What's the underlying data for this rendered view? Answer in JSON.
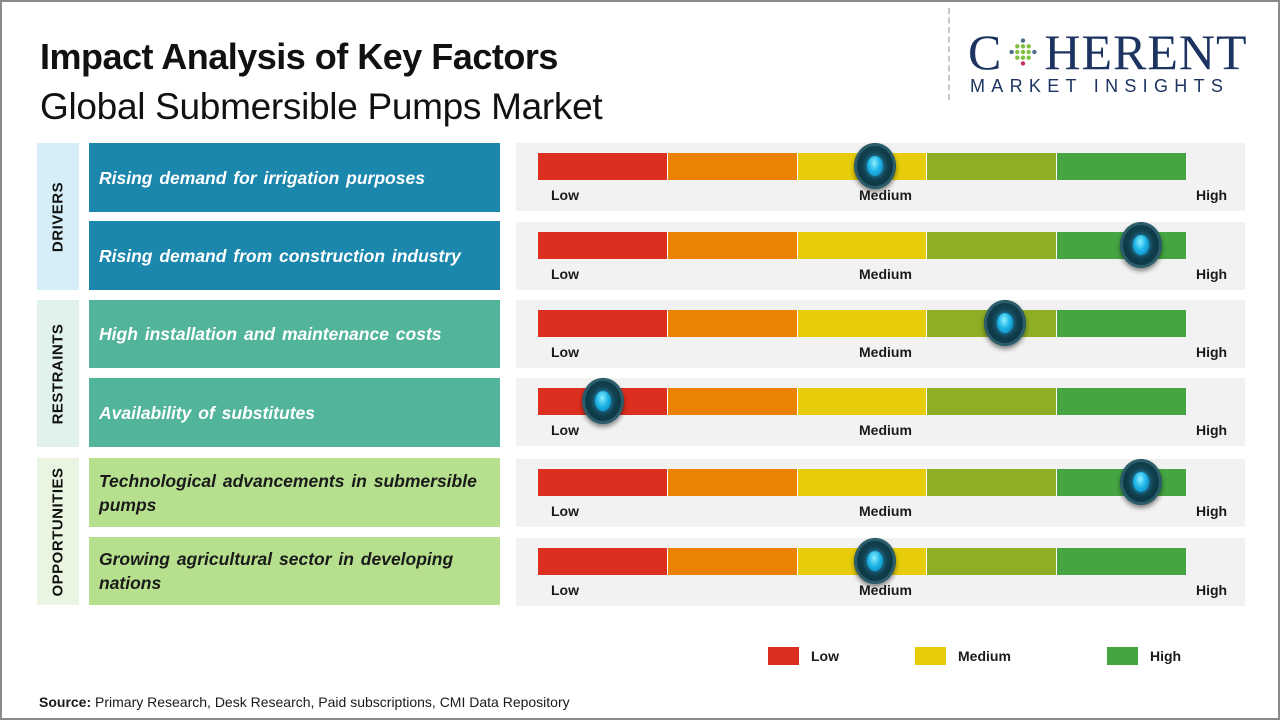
{
  "header": {
    "title": "Impact Analysis of Key Factors",
    "subtitle": "Global Submersible Pumps Market"
  },
  "logo": {
    "letter_c": "C",
    "word_rest": "HERENT",
    "tagline": "MARKET INSIGHTS",
    "color": "#1d3461"
  },
  "colors": {
    "drivers_factor": "#1b87ad",
    "drivers_category": "#d6eef8",
    "restraints_factor": "#52b59b",
    "restraints_category": "#e1f1ec",
    "opportunities_factor": "#b6e08e",
    "opportunities_category": "#e9f5e0",
    "gauge_background": "#f2f2f2",
    "segments": [
      "#dd2f1f",
      "#ea8204",
      "#e6cc0a",
      "#8fae25",
      "#44a542"
    ]
  },
  "categories": [
    {
      "label": "DRIVERS"
    },
    {
      "label": "RESTRAINTS"
    },
    {
      "label": "OPPORTUNITIES"
    }
  ],
  "gauge_labels": {
    "low": "Low",
    "medium": "Medium",
    "high": "High"
  },
  "chart_data": {
    "type": "gauge",
    "title": "Impact Analysis of Key Factors — Global Submersible Pumps Market",
    "scale": {
      "min": 0,
      "max": 1,
      "min_label": "Low",
      "mid_label": "Medium",
      "max_label": "High",
      "segments": 5
    },
    "factors": [
      {
        "category": "DRIVERS",
        "label": "Rising demand for irrigation purposes",
        "impact": 0.52,
        "impact_level": "Medium"
      },
      {
        "category": "DRIVERS",
        "label": "Rising demand from construction industry",
        "impact": 0.93,
        "impact_level": "High"
      },
      {
        "category": "RESTRAINTS",
        "label": "High installation and maintenance costs",
        "impact": 0.72,
        "impact_level": "Medium-High"
      },
      {
        "category": "RESTRAINTS",
        "label": "Availability of substitutes",
        "impact": 0.1,
        "impact_level": "Low"
      },
      {
        "category": "OPPORTUNITIES",
        "label": "Technological advancements in submersible pumps",
        "impact": 0.93,
        "impact_level": "High"
      },
      {
        "category": "OPPORTUNITIES",
        "label": "Growing agricultural sector in developing nations",
        "impact": 0.52,
        "impact_level": "Medium"
      }
    ],
    "legend": [
      {
        "label": "Low",
        "color": "#dd2f1f"
      },
      {
        "label": "Medium",
        "color": "#e6cc0a"
      },
      {
        "label": "High",
        "color": "#44a542"
      }
    ],
    "legend_position": "bottom-right"
  },
  "source": {
    "prefix": "Source:",
    "text": " Primary Research, Desk Research, Paid subscriptions, CMI Data Repository"
  }
}
